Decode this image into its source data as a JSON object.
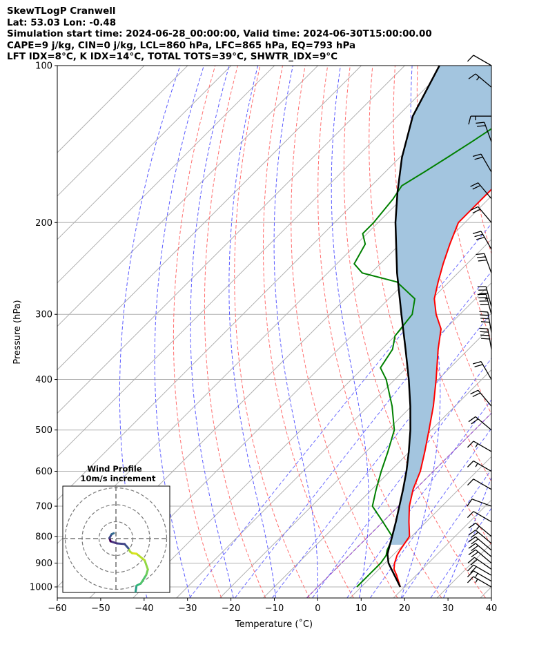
{
  "header": {
    "line1": "SkewTLogP Cranwell",
    "line2": "Lat: 53.03   Lon: -0.48",
    "line3": "Simulation start time: 2024-06-28_00:00:00, Valid time: 2024-06-30T15:00:00.00",
    "line4": "CAPE=9 j/kg, CIN=0 j/kg, LCL=860 hPa, LFC=865 hPa, EQ=793 hPa",
    "line5": "LFT IDX=8°C, K IDX=14°C, TOTAL TOTS=39°C, SHWTR_IDX=9°C"
  },
  "colors": {
    "temperature": "#ff0000",
    "dewpoint": "#008000",
    "parcel": "#000000",
    "cape_fill": "#a3c5df",
    "dry_adiabat": "#ff6e6e",
    "moist_adiabat": "#5a5aff",
    "mixing_ratio": "#6a6aff",
    "isotherm": "#b0b0b0",
    "freezing_line": "#9a4ccf"
  },
  "chart_data": {
    "type": "skewt",
    "xlabel": "Temperature (˚C)",
    "ylabel": "Pressure (hPa)",
    "xlim": [
      -60,
      40
    ],
    "ylim": [
      1050,
      100
    ],
    "x_ticks": [
      "−60",
      "−50",
      "−40",
      "−30",
      "−20",
      "−10",
      "0",
      "10",
      "20",
      "30",
      "40"
    ],
    "x_tick_values": [
      -60,
      -50,
      -40,
      -30,
      -20,
      -10,
      0,
      10,
      20,
      30,
      40
    ],
    "y_ticks": [
      "1000",
      "900",
      "800",
      "700",
      "600",
      "500",
      "400",
      "300",
      "200",
      "100"
    ],
    "y_tick_values": [
      1000,
      900,
      800,
      700,
      600,
      500,
      400,
      300,
      200,
      100
    ],
    "grid": true,
    "series": [
      {
        "key": "temperature",
        "pressure": [
          1000,
          950,
          925,
          900,
          870,
          850,
          800,
          750,
          700,
          650,
          600,
          550,
          500,
          450,
          400,
          350,
          320,
          300,
          280,
          260,
          240,
          220,
          200,
          180,
          170,
          160,
          150,
          140,
          130,
          120,
          110,
          100
        ],
        "temp": [
          19,
          15.5,
          13.5,
          12.2,
          11,
          10.5,
          9.5,
          6,
          2.5,
          -0.5,
          -3,
          -6.5,
          -10.5,
          -15,
          -20.5,
          -27,
          -31,
          -35.5,
          -39.5,
          -42.5,
          -45.5,
          -48.5,
          -51.5,
          -51.5,
          -51.5,
          -52,
          -53,
          -53.5,
          -53,
          -52.5,
          -52,
          -52
        ]
      },
      {
        "key": "dewpoint",
        "pressure": [
          1000,
          950,
          900,
          870,
          850,
          820,
          800,
          750,
          700,
          650,
          600,
          550,
          500,
          450,
          400,
          380,
          350,
          330,
          300,
          280,
          260,
          250,
          240,
          220,
          210,
          200,
          180,
          170,
          160,
          150,
          140,
          130,
          120,
          110,
          100
        ],
        "temp": [
          9,
          9,
          9,
          8.5,
          7.5,
          6.5,
          5.5,
          0,
          -6,
          -9,
          -12,
          -15,
          -18.5,
          -24.5,
          -32,
          -36,
          -37.5,
          -40,
          -41,
          -44,
          -52,
          -62,
          -66,
          -68,
          -71,
          -71,
          -72,
          -73,
          -71,
          -69,
          -67,
          -65,
          -63,
          -60,
          -58
        ]
      },
      {
        "key": "parcel",
        "pressure": [
          1000,
          950,
          900,
          865,
          850,
          800,
          750,
          700,
          650,
          600,
          550,
          500,
          450,
          400,
          350,
          300,
          250,
          200,
          175,
          150,
          125,
          100
        ],
        "temp": [
          19,
          15,
          10.8,
          8.5,
          7.8,
          5.5,
          3,
          0.2,
          -2.8,
          -6.2,
          -10.2,
          -14.8,
          -20.3,
          -26.8,
          -34.5,
          -43.5,
          -54,
          -66,
          -72.5,
          -79.5,
          -86.5,
          -92
        ]
      }
    ],
    "wind_barbs": [
      {
        "p": 1000,
        "speed": 15,
        "dir": 300
      },
      {
        "p": 975,
        "speed": 15,
        "dir": 300
      },
      {
        "p": 950,
        "speed": 20,
        "dir": 300
      },
      {
        "p": 925,
        "speed": 20,
        "dir": 305
      },
      {
        "p": 900,
        "speed": 20,
        "dir": 310
      },
      {
        "p": 875,
        "speed": 20,
        "dir": 310
      },
      {
        "p": 850,
        "speed": 20,
        "dir": 310
      },
      {
        "p": 825,
        "speed": 20,
        "dir": 310
      },
      {
        "p": 800,
        "speed": 15,
        "dir": 310
      },
      {
        "p": 750,
        "speed": 10,
        "dir": 300
      },
      {
        "p": 700,
        "speed": 10,
        "dir": 290
      },
      {
        "p": 650,
        "speed": 10,
        "dir": 300
      },
      {
        "p": 600,
        "speed": 15,
        "dir": 300
      },
      {
        "p": 550,
        "speed": 15,
        "dir": 300
      },
      {
        "p": 500,
        "speed": 20,
        "dir": 310
      },
      {
        "p": 450,
        "speed": 20,
        "dir": 320
      },
      {
        "p": 400,
        "speed": 20,
        "dir": 330
      },
      {
        "p": 350,
        "speed": 40,
        "dir": 350
      },
      {
        "p": 325,
        "speed": 40,
        "dir": 350
      },
      {
        "p": 300,
        "speed": 40,
        "dir": 345
      },
      {
        "p": 290,
        "speed": 35,
        "dir": 345
      },
      {
        "p": 250,
        "speed": 30,
        "dir": 340
      },
      {
        "p": 225,
        "speed": 30,
        "dir": 330
      },
      {
        "p": 200,
        "speed": 20,
        "dir": 320
      },
      {
        "p": 180,
        "speed": 20,
        "dir": 320
      },
      {
        "p": 160,
        "speed": 20,
        "dir": 330
      },
      {
        "p": 140,
        "speed": 20,
        "dir": 340
      },
      {
        "p": 125,
        "speed": 15,
        "dir": 270
      },
      {
        "p": 110,
        "speed": 15,
        "dir": 310
      },
      {
        "p": 100,
        "speed": 10,
        "dir": 300
      }
    ],
    "hodograph": {
      "title_line1": "Wind Profile",
      "title_line2": "10m/s increment",
      "u": [
        3.2,
        3.0,
        3.6,
        3.8,
        4.6,
        5.6,
        5.9,
        5.3,
        3.8,
        3.0,
        2.6,
        2.3,
        1.6,
        0.2,
        -1.0,
        -1.2,
        -0.8,
        -0.4
      ],
      "v": [
        -12.0,
        -10.8,
        -10.0,
        -8.7,
        -8.3,
        -6.7,
        -5.7,
        -4.0,
        -2.8,
        -2.7,
        -2.4,
        -1.8,
        -1.0,
        -0.9,
        -0.5,
        0.1,
        0.8,
        1.0
      ]
    }
  }
}
